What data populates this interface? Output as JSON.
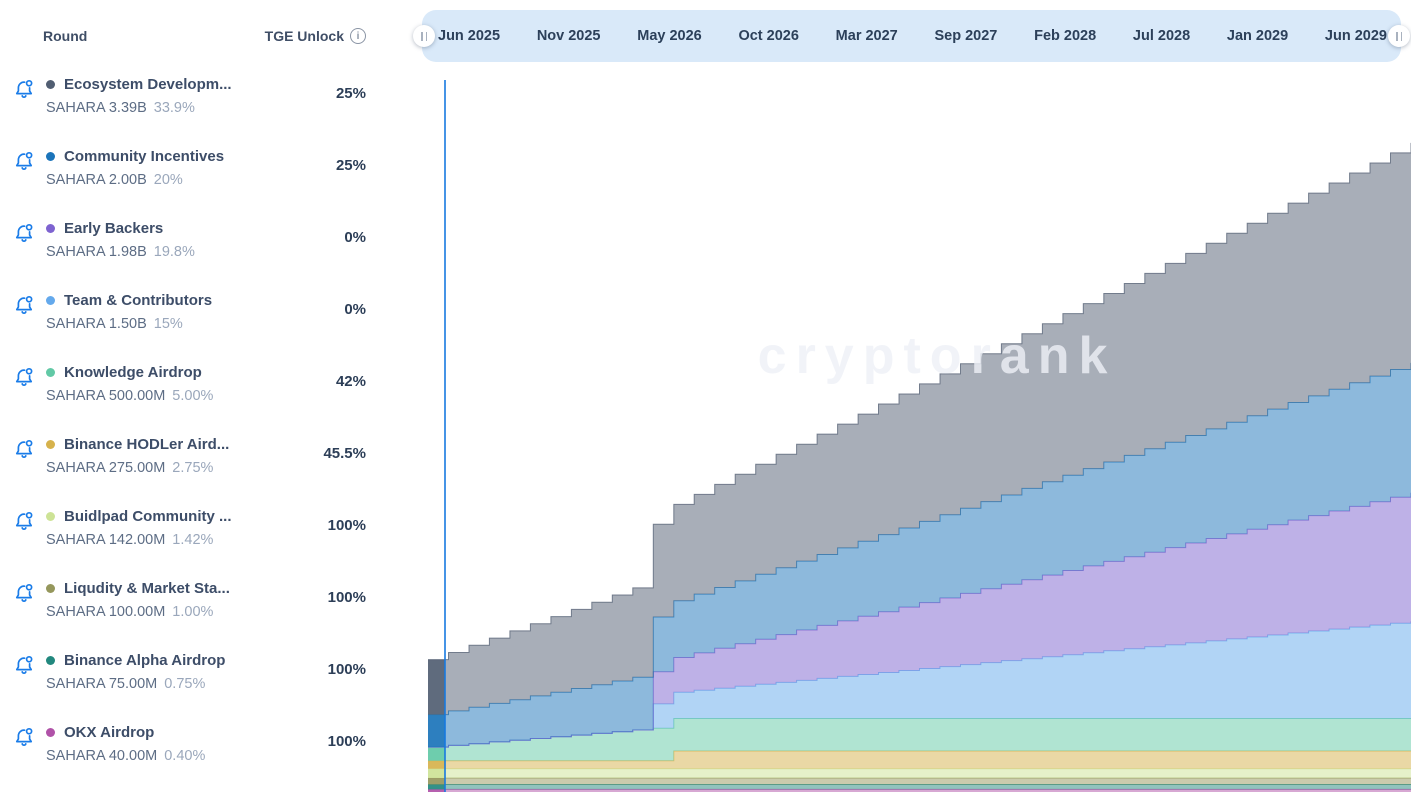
{
  "left_panel": {
    "header": {
      "round_label": "Round",
      "tge_label": "TGE Unlock"
    },
    "rows": [
      {
        "name": "Ecosystem Developm...",
        "amount": "SAHARA 3.39B",
        "share": "33.9%",
        "tge": "25%",
        "color": "#515e72"
      },
      {
        "name": "Community Incentives",
        "amount": "SAHARA 2.00B",
        "share": "20%",
        "tge": "25%",
        "color": "#1b74ba"
      },
      {
        "name": "Early Backers",
        "amount": "SAHARA 1.98B",
        "share": "19.8%",
        "tge": "0%",
        "color": "#7e63d0"
      },
      {
        "name": "Team & Contributors",
        "amount": "SAHARA 1.50B",
        "share": "15%",
        "tge": "0%",
        "color": "#64a9ec"
      },
      {
        "name": "Knowledge Airdrop",
        "amount": "SAHARA 500.00M",
        "share": "5.00%",
        "tge": "42%",
        "color": "#62c9a6"
      },
      {
        "name": "Binance HODLer Aird...",
        "amount": "SAHARA 275.00M",
        "share": "2.75%",
        "tge": "45.5%",
        "color": "#d6b24c"
      },
      {
        "name": "Buidlpad Community ...",
        "amount": "SAHARA 142.00M",
        "share": "1.42%",
        "tge": "100%",
        "color": "#cde396"
      },
      {
        "name": "Liqudity & Market Sta...",
        "amount": "SAHARA 100.00M",
        "share": "1.00%",
        "tge": "100%",
        "color": "#95975c"
      },
      {
        "name": "Binance Alpha Airdrop",
        "amount": "SAHARA 75.00M",
        "share": "0.75%",
        "tge": "100%",
        "color": "#22887e"
      },
      {
        "name": "OKX Airdrop",
        "amount": "SAHARA 40.00M",
        "share": "0.40%",
        "tge": "100%",
        "color": "#b052a8"
      }
    ]
  },
  "timeline": {
    "labels": [
      "Jun 2025",
      "Nov 2025",
      "May 2026",
      "Oct 2026",
      "Mar 2027",
      "Sep 2027",
      "Feb 2028",
      "Jul 2028",
      "Jan 2029",
      "Jun 2029"
    ]
  },
  "chart_data": {
    "type": "area",
    "stacked": true,
    "title": "SAHARA token unlock schedule",
    "watermark": "cryptorank",
    "x_unit": "months since TGE (Jun 2025)",
    "x_range_months": 48,
    "x_tick_labels": [
      "Jun 2025",
      "Nov 2025",
      "May 2026",
      "Oct 2026",
      "Mar 2027",
      "Sep 2027",
      "Feb 2028",
      "Jul 2028",
      "Jan 2029",
      "Jun 2029"
    ],
    "y_unit": "million SAHARA",
    "y_max_millions": 10000,
    "now_line_month": 0.85,
    "now_line_color": "#1779e0",
    "grid": false,
    "legend_position": "left-panel",
    "series_bottom_to_top": [
      {
        "name": "OKX Airdrop",
        "color": "#b052a8",
        "total_millions": 40,
        "tge_pct": 100,
        "cliff_months": 0,
        "cliff_unlock_pct": 0,
        "vest_months": 0
      },
      {
        "name": "Binance Alpha Airdrop",
        "color": "#22887e",
        "total_millions": 75,
        "tge_pct": 100,
        "cliff_months": 0,
        "cliff_unlock_pct": 0,
        "vest_months": 0
      },
      {
        "name": "Liqudity & Market Sta...",
        "color": "#95975c",
        "total_millions": 100,
        "tge_pct": 100,
        "cliff_months": 0,
        "cliff_unlock_pct": 0,
        "vest_months": 0
      },
      {
        "name": "Buidlpad Community ...",
        "color": "#cde396",
        "total_millions": 142,
        "tge_pct": 100,
        "cliff_months": 0,
        "cliff_unlock_pct": 0,
        "vest_months": 0
      },
      {
        "name": "Binance HODLer Aird...",
        "color": "#d6b24c",
        "total_millions": 275,
        "tge_pct": 45.5,
        "cliff_months": 12,
        "cliff_unlock_pct": 54.5,
        "vest_months": 0
      },
      {
        "name": "Knowledge Airdrop",
        "color": "#62c9a6",
        "total_millions": 500,
        "tge_pct": 42,
        "cliff_months": 0,
        "cliff_unlock_pct": 0,
        "vest_months": 11
      },
      {
        "name": "Team & Contributors",
        "color": "#64a9ec",
        "total_millions": 1500,
        "tge_pct": 0,
        "cliff_months": 11,
        "cliff_unlock_pct": 25,
        "vest_months": 37
      },
      {
        "name": "Early Backers",
        "color": "#7e63d0",
        "total_millions": 1980,
        "tge_pct": 0,
        "cliff_months": 11,
        "cliff_unlock_pct": 25,
        "vest_months": 37
      },
      {
        "name": "Community Incentives",
        "color": "#1b74ba",
        "total_millions": 2000,
        "tge_pct": 25,
        "cliff_months": 0,
        "cliff_unlock_pct": 0,
        "vest_months": 48
      },
      {
        "name": "Ecosystem Developm...",
        "color": "#515e72",
        "total_millions": 3390,
        "tge_pct": 25,
        "cliff_months": 0,
        "cliff_unlock_pct": 0,
        "vest_months": 48
      }
    ]
  }
}
